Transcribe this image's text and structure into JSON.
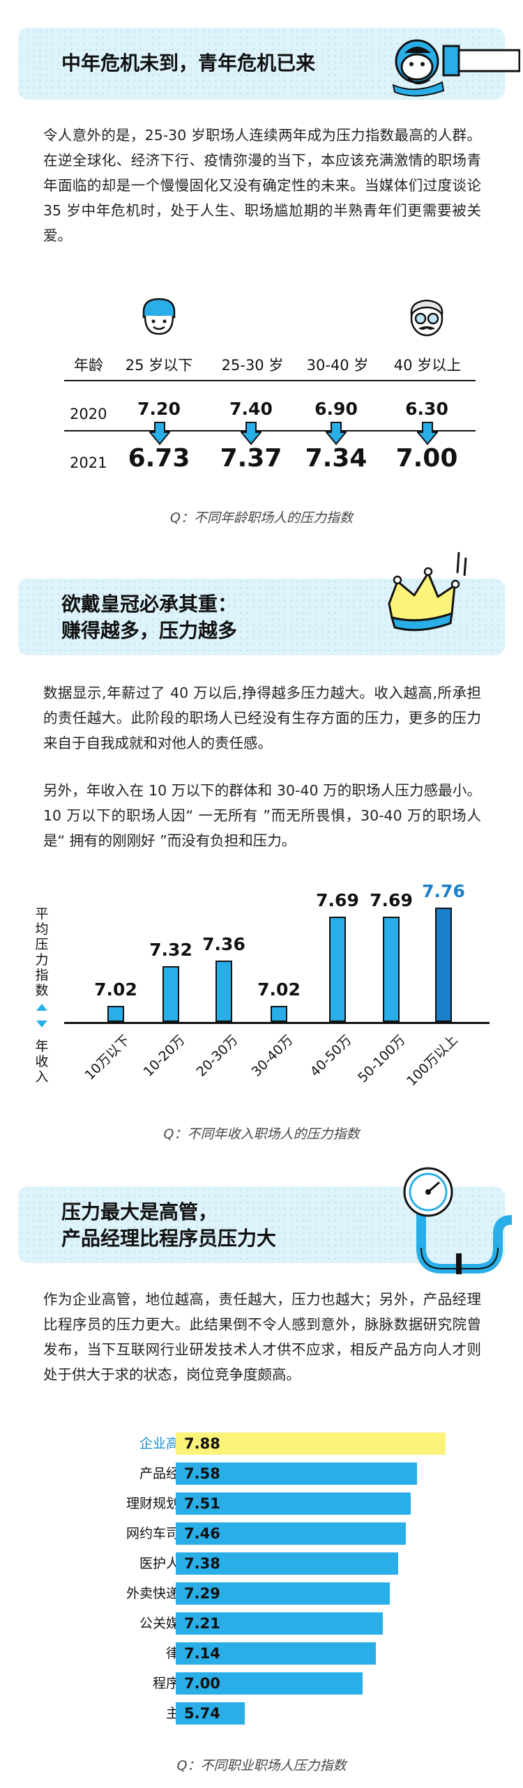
{
  "section1": {
    "title": "中年危机未到，青年危机已来",
    "paragraph": "令人意外的是，25-30 岁职场人连续两年成为压力指数最高的人群。在逆全球化、经济下行、疫情弥漫的当下，本应该充满激情的职场青年面临的却是一个慢慢固化又没有确定性的未来。当媒体们过度谈论 35 岁中年危机时，处于人生、职场尴尬期的半熟青年们更需要被关爱。"
  },
  "section2": {
    "title_line1": "欲戴皇冠必承其重：",
    "title_line2": "赚得越多，压力越多",
    "paragraph1": "数据显示,年薪过了 40 万以后,挣得越多压力越大。收入越高,所承担的责任越大。此阶段的职场人已经没有生存方面的压力，更多的压力来自于自我成就和对他人的责任感。",
    "paragraph2": "另外，年收入在 10 万以下的群体和 30-40 万的职场人压力感最小。10 万以下的职场人因“ 一无所有 ”而无所畏惧，30-40 万的职场人是“ 拥有的刚刚好 ”而没有负担和压力。"
  },
  "section3": {
    "title_line1": "压力最大是高管，",
    "title_line2": "产品经理比程序员压力大",
    "paragraph": "作为企业高管，地位越高，责任越大，压力也越大；另外，产品经理比程序员的压力更大。此结果倒不令人感到意外，脉脉数据研究院曾发布，当下互联网行业研发技术人才供不应求，相反产品方向人才则处于供大于求的状态，岗位竞争度颇高。"
  },
  "colors": {
    "banner": "#dff3fb",
    "bar": "#29aee8",
    "bar_highlight": "#1a7fc8",
    "job_highlight": "#fbf37a",
    "highlight_text": "#1a8fd6"
  },
  "icons": [
    "swimmer-icon",
    "young-face-icon",
    "old-face-icon",
    "crown-icon",
    "pressure-gauge-icon",
    "arrow-down-icon"
  ],
  "chart_data": [
    {
      "type": "table",
      "title": "Q：不同年龄职场人的压力指数",
      "header_label": "年龄",
      "categories": [
        "25 岁以下",
        "25-30 岁",
        "30-40 岁",
        "40 岁以上"
      ],
      "series": [
        {
          "name": "2020",
          "values": [
            "7.20",
            "7.40",
            "6.90",
            "6.30"
          ]
        },
        {
          "name": "2021",
          "values": [
            "6.73",
            "7.37",
            "7.34",
            "7.00"
          ]
        }
      ]
    },
    {
      "type": "bar",
      "title": "Q：不同年收入职场人的压力指数",
      "ylabel": "平均压力指数",
      "xlabel": "年收入",
      "categories": [
        "10万以下",
        "10-20万",
        "20-30万",
        "30-40万",
        "40-50万",
        "50-100万",
        "100万以上"
      ],
      "values": [
        "7.02",
        "7.32",
        "7.36",
        "7.02",
        "7.69",
        "7.69",
        "7.76"
      ],
      "highlight": "100万以上",
      "ylim": [
        6.9,
        7.8
      ]
    },
    {
      "type": "bar",
      "orientation": "horizontal",
      "title": "Q：不同职业职场人压力指数",
      "categories": [
        "企业高管",
        "产品经理",
        "理财规划师",
        "网约车司机",
        "医护人员",
        "外卖快递员",
        "公关媒体",
        "律师",
        "程序员",
        "主播"
      ],
      "values": [
        "7.88",
        "7.58",
        "7.51",
        "7.46",
        "7.38",
        "7.29",
        "7.21",
        "7.14",
        "7.00",
        "5.74"
      ],
      "highlight": "企业高管",
      "xlim": [
        5.0,
        7.95
      ]
    }
  ]
}
